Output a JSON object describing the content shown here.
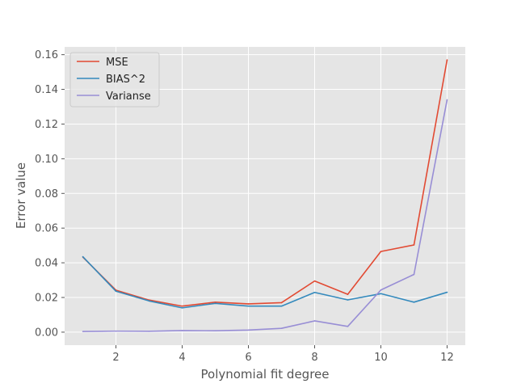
{
  "chart_data": {
    "type": "line",
    "title": "",
    "xlabel": "Polynomial fit degree",
    "ylabel": "Error value",
    "x": [
      1,
      2,
      3,
      4,
      5,
      6,
      7,
      8,
      9,
      10,
      11,
      12
    ],
    "xticks": [
      2,
      4,
      6,
      8,
      10,
      12
    ],
    "yticks": [
      0.0,
      0.02,
      0.04,
      0.06,
      0.08,
      0.1,
      0.12,
      0.14,
      0.16
    ],
    "ytick_labels": [
      "0.00",
      "0.02",
      "0.04",
      "0.06",
      "0.08",
      "0.10",
      "0.12",
      "0.14",
      "0.16"
    ],
    "xlim": [
      0.45,
      12.55
    ],
    "ylim": [
      -0.0075,
      0.1645
    ],
    "grid": true,
    "legend_position": "top-left",
    "series": [
      {
        "name": "MSE",
        "color": "#E24A33",
        "values": [
          0.0433,
          0.0242,
          0.0185,
          0.015,
          0.0173,
          0.0163,
          0.017,
          0.0295,
          0.0218,
          0.0465,
          0.0503,
          0.157
        ]
      },
      {
        "name": "BIAS^2",
        "color": "#348ABD",
        "values": [
          0.0435,
          0.0236,
          0.018,
          0.014,
          0.0166,
          0.015,
          0.015,
          0.0229,
          0.0186,
          0.0222,
          0.0173,
          0.023
        ]
      },
      {
        "name": "Varianse",
        "color": "#988ED5",
        "values": [
          0.0004,
          0.0006,
          0.0005,
          0.0009,
          0.0008,
          0.0012,
          0.0022,
          0.0065,
          0.0033,
          0.0243,
          0.0333,
          0.134
        ]
      }
    ]
  }
}
